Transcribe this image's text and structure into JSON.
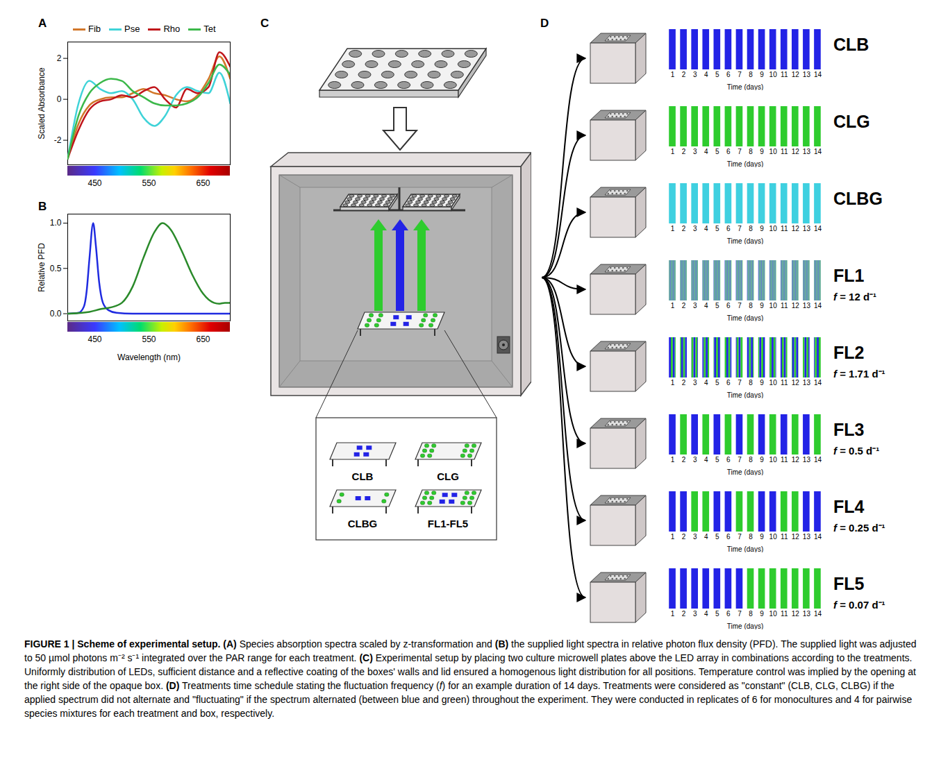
{
  "panel_labels": [
    "A",
    "B",
    "C",
    "D"
  ],
  "palette": {
    "B": "#2323e6",
    "G": "#2ecc2e",
    "C": "#3fd0e0"
  },
  "chart_data": [
    {
      "type": "line",
      "panel": "A",
      "y_label": "Scaled Absorbance",
      "x": [
        400,
        420,
        440,
        460,
        480,
        500,
        520,
        540,
        560,
        580,
        600,
        620,
        640,
        660,
        680,
        700
      ],
      "series": [
        {
          "name": "Fib",
          "color": "#d2772a",
          "values": [
            -2.9,
            -1.2,
            -0.3,
            0.0,
            0.1,
            0.1,
            0.3,
            0.5,
            0.3,
            0.2,
            0.0,
            -0.1,
            0.2,
            1.0,
            2.1,
            1.0
          ]
        },
        {
          "name": "Pse",
          "color": "#3fd3d8",
          "values": [
            -2.9,
            -0.2,
            0.9,
            0.5,
            0.3,
            0.4,
            0.0,
            -0.9,
            -1.3,
            -0.8,
            0.2,
            0.6,
            0.4,
            0.3,
            1.3,
            -0.2
          ]
        },
        {
          "name": "Rho",
          "color": "#c0141a",
          "values": [
            -2.9,
            -1.5,
            -0.5,
            -0.1,
            0.0,
            0.2,
            0.1,
            0.4,
            0.6,
            0.0,
            -0.4,
            0.5,
            0.3,
            0.6,
            2.3,
            1.6
          ]
        },
        {
          "name": "Tet",
          "color": "#3cb84a",
          "values": [
            -2.9,
            -0.8,
            0.3,
            0.8,
            1.0,
            0.9,
            0.4,
            0.1,
            -0.2,
            -0.3,
            -0.3,
            -0.2,
            0.1,
            0.8,
            1.7,
            1.2
          ]
        }
      ],
      "xlim": [
        400,
        700
      ],
      "xticks": [
        450,
        550,
        650
      ],
      "ylim": [
        -3.2,
        2.8
      ],
      "yticks": [
        -2,
        0,
        2
      ],
      "legend": "top"
    },
    {
      "type": "line",
      "panel": "B",
      "x_label": "Wavelength (nm)",
      "y_label": "Relative PFD",
      "series": [
        {
          "color": "#1f2be0",
          "x": [
            400,
            420,
            430,
            435,
            440,
            447,
            452,
            458,
            465,
            475,
            490,
            520,
            700
          ],
          "values": [
            0,
            0.01,
            0.08,
            0.25,
            0.6,
            1.0,
            0.75,
            0.35,
            0.12,
            0.04,
            0.01,
            0,
            0
          ]
        },
        {
          "color": "#2a8a2a",
          "x": [
            400,
            440,
            460,
            480,
            500,
            520,
            540,
            560,
            575,
            590,
            610,
            630,
            650,
            670,
            680,
            690,
            700
          ],
          "values": [
            0,
            0.02,
            0.05,
            0.07,
            0.12,
            0.3,
            0.62,
            0.9,
            1.0,
            0.93,
            0.7,
            0.43,
            0.22,
            0.12,
            0.11,
            0.12,
            0.12
          ]
        }
      ],
      "xlim": [
        400,
        700
      ],
      "xticks": [
        450,
        550,
        650
      ],
      "ylim": [
        -0.08,
        1.1
      ],
      "yticks": [
        {
          "value": 0,
          "label": "0.0"
        },
        {
          "value": 0.5,
          "label": "0.5"
        },
        {
          "value": 1,
          "label": "1.0"
        }
      ]
    },
    {
      "type": "bar",
      "panel": "D",
      "title": "CLB",
      "x_label": "Time (days)",
      "x": [
        1,
        2,
        3,
        4,
        5,
        6,
        7,
        8,
        9,
        10,
        11,
        12,
        13,
        14
      ],
      "values": [
        1,
        1,
        1,
        1,
        1,
        1,
        1,
        1,
        1,
        1,
        1,
        1,
        1,
        1
      ],
      "xlim": [
        0.5,
        14.5
      ],
      "xticks": [
        1,
        2,
        3,
        4,
        5,
        6,
        7,
        8,
        9,
        10,
        11,
        12,
        13,
        14
      ],
      "ylim": [
        0,
        1
      ],
      "tick_labels": "x",
      "day_colors": [
        "B",
        "B",
        "B",
        "B",
        "B",
        "B",
        "B",
        "B",
        "B",
        "B",
        "B",
        "B",
        "B",
        "B"
      ]
    },
    {
      "type": "bar",
      "panel": "D",
      "title": "CLG",
      "x_label": "Time (days)",
      "x": [
        1,
        2,
        3,
        4,
        5,
        6,
        7,
        8,
        9,
        10,
        11,
        12,
        13,
        14
      ],
      "values": [
        1,
        1,
        1,
        1,
        1,
        1,
        1,
        1,
        1,
        1,
        1,
        1,
        1,
        1
      ],
      "xlim": [
        0.5,
        14.5
      ],
      "xticks": [
        1,
        2,
        3,
        4,
        5,
        6,
        7,
        8,
        9,
        10,
        11,
        12,
        13,
        14
      ],
      "ylim": [
        0,
        1
      ],
      "tick_labels": "x",
      "day_colors": [
        "G",
        "G",
        "G",
        "G",
        "G",
        "G",
        "G",
        "G",
        "G",
        "G",
        "G",
        "G",
        "G",
        "G"
      ]
    },
    {
      "type": "bar",
      "panel": "D",
      "title": "CLBG",
      "x_label": "Time (days)",
      "x": [
        1,
        2,
        3,
        4,
        5,
        6,
        7,
        8,
        9,
        10,
        11,
        12,
        13,
        14
      ],
      "values": [
        1,
        1,
        1,
        1,
        1,
        1,
        1,
        1,
        1,
        1,
        1,
        1,
        1,
        1
      ],
      "xlim": [
        0.5,
        14.5
      ],
      "xticks": [
        1,
        2,
        3,
        4,
        5,
        6,
        7,
        8,
        9,
        10,
        11,
        12,
        13,
        14
      ],
      "ylim": [
        0,
        1
      ],
      "tick_labels": "x",
      "day_colors": [
        "C",
        "C",
        "C",
        "C",
        "C",
        "C",
        "C",
        "C",
        "C",
        "C",
        "C",
        "C",
        "C",
        "C"
      ]
    },
    {
      "type": "bar",
      "panel": "D",
      "title": "FL1",
      "subtitle": "f = 12 d⁻¹",
      "x_label": "Time (days)",
      "x": [
        1,
        2,
        3,
        4,
        5,
        6,
        7,
        8,
        9,
        10,
        11,
        12,
        13,
        14
      ],
      "values": [
        1,
        1,
        1,
        1,
        1,
        1,
        1,
        1,
        1,
        1,
        1,
        1,
        1,
        1
      ],
      "xlim": [
        0.5,
        14.5
      ],
      "xticks": [
        1,
        2,
        3,
        4,
        5,
        6,
        7,
        8,
        9,
        10,
        11,
        12,
        13,
        14
      ],
      "ylim": [
        0,
        1
      ],
      "tick_labels": "x",
      "day_colors": [
        "BGBGBGBGBGBGBGBGBGBGBGBG",
        "BGBGBGBGBGBGBGBGBGBGBGBG",
        "BGBGBGBGBGBGBGBGBGBGBGBG",
        "BGBGBGBGBGBGBGBGBGBGBGBG",
        "BGBGBGBGBGBGBGBGBGBGBGBG",
        "BGBGBGBGBGBGBGBGBGBGBGBG",
        "BGBGBGBGBGBGBGBGBGBGBGBG",
        "BGBGBGBGBGBGBGBGBGBGBGBG",
        "BGBGBGBGBGBGBGBGBGBGBGBG",
        "BGBGBGBGBGBGBGBGBGBGBGBG",
        "BGBGBGBGBGBGBGBGBGBGBGBG",
        "BGBGBGBGBGBGBGBGBGBGBGBG",
        "BGBGBGBGBGBGBGBGBGBGBGBG",
        "BGBGBGBGBGBGBGBGBGBGBGBG"
      ]
    },
    {
      "type": "bar",
      "panel": "D",
      "title": "FL2",
      "subtitle": "f = 1.71 d⁻¹",
      "x_label": "Time (days)",
      "x": [
        1,
        2,
        3,
        4,
        5,
        6,
        7,
        8,
        9,
        10,
        11,
        12,
        13,
        14
      ],
      "values": [
        1,
        1,
        1,
        1,
        1,
        1,
        1,
        1,
        1,
        1,
        1,
        1,
        1,
        1
      ],
      "xlim": [
        0.5,
        14.5
      ],
      "xticks": [
        1,
        2,
        3,
        4,
        5,
        6,
        7,
        8,
        9,
        10,
        11,
        12,
        13,
        14
      ],
      "ylim": [
        0,
        1
      ],
      "tick_labels": "x",
      "day_colors": [
        "BBBBBBBGGGGGGGBBBBBBBGGG",
        "GGGGBBBBBBBGGGGGGGBBBBBB",
        "BGGGGGGGBBBBBBBGGGGGGGBB",
        "BBBBBGGGGGGGBBBBBBBGGGGG",
        "GGBBBBBBBGGGGGGGBBBBBBBG",
        "GGGGGGBBBBBBBGGGGGGGBBBB",
        "BBBGGGGGGGBBBBBBBGGGGGGG",
        "BBBBBBBGGGGGGGBBBBBBBGGG",
        "GGGGBBBBBBBGGGGGGGBBBBBB",
        "BGGGGGGGBBBBBBBGGGGGGGBB",
        "BBBBBGGGGGGGBBBBBBBGGGGG",
        "GGBBBBBBBGGGGGGGBBBBBBBG",
        "GGGGGGBBBBBBBGGGGGGGBBBB",
        "BBBGGGGGGGBBBBBBBGGGGGGG"
      ]
    },
    {
      "type": "bar",
      "panel": "D",
      "title": "FL3",
      "subtitle": "f = 0.5 d⁻¹",
      "x_label": "Time (days)",
      "x": [
        1,
        2,
        3,
        4,
        5,
        6,
        7,
        8,
        9,
        10,
        11,
        12,
        13,
        14
      ],
      "values": [
        1,
        1,
        1,
        1,
        1,
        1,
        1,
        1,
        1,
        1,
        1,
        1,
        1,
        1
      ],
      "xlim": [
        0.5,
        14.5
      ],
      "xticks": [
        1,
        2,
        3,
        4,
        5,
        6,
        7,
        8,
        9,
        10,
        11,
        12,
        13,
        14
      ],
      "ylim": [
        0,
        1
      ],
      "tick_labels": "x",
      "day_colors": [
        "B",
        "G",
        "B",
        "G",
        "B",
        "G",
        "B",
        "G",
        "B",
        "G",
        "B",
        "G",
        "B",
        "G"
      ]
    },
    {
      "type": "bar",
      "panel": "D",
      "title": "FL4",
      "subtitle": "f = 0.25 d⁻¹",
      "x_label": "Time (days)",
      "x": [
        1,
        2,
        3,
        4,
        5,
        6,
        7,
        8,
        9,
        10,
        11,
        12,
        13,
        14
      ],
      "values": [
        1,
        1,
        1,
        1,
        1,
        1,
        1,
        1,
        1,
        1,
        1,
        1,
        1,
        1
      ],
      "xlim": [
        0.5,
        14.5
      ],
      "xticks": [
        1,
        2,
        3,
        4,
        5,
        6,
        7,
        8,
        9,
        10,
        11,
        12,
        13,
        14
      ],
      "ylim": [
        0,
        1
      ],
      "tick_labels": "x",
      "day_colors": [
        "B",
        "B",
        "G",
        "G",
        "B",
        "B",
        "G",
        "G",
        "B",
        "B",
        "G",
        "G",
        "B",
        "B"
      ]
    },
    {
      "type": "bar",
      "panel": "D",
      "title": "FL5",
      "subtitle": "f = 0.07 d⁻¹",
      "x_label": "Time (days)",
      "x": [
        1,
        2,
        3,
        4,
        5,
        6,
        7,
        8,
        9,
        10,
        11,
        12,
        13,
        14
      ],
      "values": [
        1,
        1,
        1,
        1,
        1,
        1,
        1,
        1,
        1,
        1,
        1,
        1,
        1,
        1
      ],
      "xlim": [
        0.5,
        14.5
      ],
      "xticks": [
        1,
        2,
        3,
        4,
        5,
        6,
        7,
        8,
        9,
        10,
        11,
        12,
        13,
        14
      ],
      "ylim": [
        0,
        1
      ],
      "tick_labels": "x",
      "day_colors": [
        "B",
        "B",
        "B",
        "B",
        "B",
        "B",
        "B",
        "G",
        "G",
        "G",
        "G",
        "G",
        "G",
        "G"
      ]
    }
  ],
  "diagram": {
    "panel": "C",
    "boards": [
      "CLB",
      "CLG",
      "CLBG",
      "FL1-FL5"
    ]
  },
  "caption": [
    {
      "text": "FIGURE 1 | Scheme of experimental setup. (A)",
      "bold": true
    },
    {
      "text": " Species absorption spectra scaled by z-transformation and "
    },
    {
      "text": "(B)",
      "bold": true
    },
    {
      "text": " the supplied light spectra in relative photon flux density (PFD). The supplied light was adjusted to 50 µmol photons m⁻² s⁻¹ integrated over the PAR range for each treatment. "
    },
    {
      "text": "(C)",
      "bold": true
    },
    {
      "text": " Experimental setup by placing two culture microwell plates above the LED array in combinations according to the treatments. Uniformly distribution of LEDs, sufficient distance and a reflective coating of the boxes' walls and lid ensured a homogenous light distribution for all positions. Temperature control was implied by the opening at the right side of the opaque box. "
    },
    {
      "text": "(D)",
      "bold": true
    },
    {
      "text": " Treatments time schedule stating the fluctuation frequency ("
    },
    {
      "text": "f",
      "italic": true
    },
    {
      "text": ") for an example duration of 14 days. Treatments were considered as \"constant\" (CLB, CLG, CLBG) if the applied spectrum did not alternate and \"fluctuating\" if the spectrum alternated (between blue and green) throughout the experiment. They were conducted in replicates of 6 for monocultures and 4 for pairwise species mixtures for each treatment and box, respectively."
    }
  ]
}
